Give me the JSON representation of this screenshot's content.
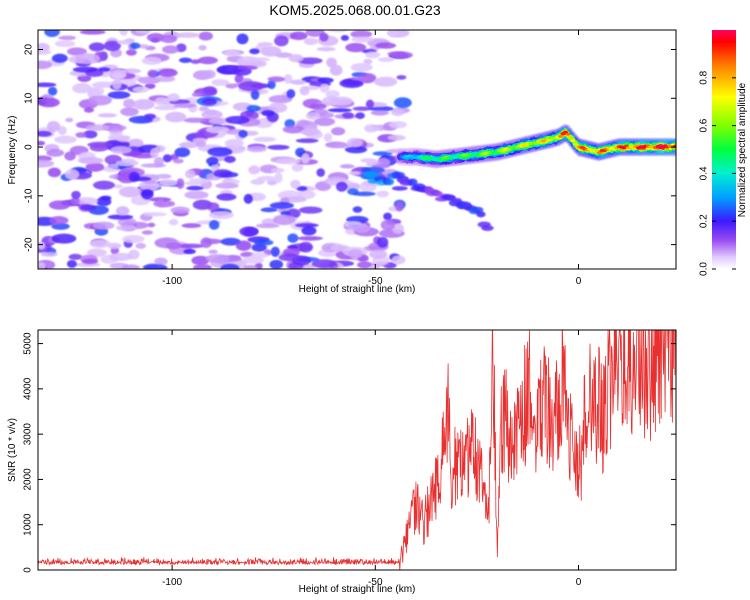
{
  "title": "KOM5.2025.068.00.01.G23",
  "chart_data": [
    {
      "type": "heatmap",
      "xlabel": "Height of straight line (km)",
      "ylabel": "Frequency (Hz)",
      "xlim": [
        -133,
        24
      ],
      "ylim": [
        -25,
        24
      ],
      "xticks": [
        -100,
        -50,
        0
      ],
      "yticks": [
        -20,
        -10,
        0,
        10,
        20
      ],
      "colorbar": {
        "label": "Normalized spectral amplitude",
        "range": [
          0,
          1
        ],
        "ticks": [
          0.0,
          0.2,
          0.4,
          0.6,
          0.8
        ],
        "tick_labels": [
          "0.0",
          "0.2",
          "0.4",
          "0.6",
          "0.8"
        ]
      },
      "noise_region": {
        "x": [
          -133,
          -43
        ],
        "amplitude": [
          0.05,
          0.25
        ]
      },
      "signal_trace": {
        "x": [
          -44,
          -40,
          -35,
          -30,
          -25,
          -20,
          -15,
          -10,
          -5,
          -3,
          0,
          5,
          10,
          15,
          20,
          24
        ],
        "y": [
          -2,
          -2,
          -2.5,
          -2,
          -1.5,
          -1,
          0,
          1,
          2,
          3,
          0,
          -1,
          0,
          0,
          0,
          0
        ],
        "amplitude": [
          0.25,
          0.4,
          0.5,
          0.5,
          0.55,
          0.6,
          0.65,
          0.7,
          0.75,
          0.85,
          0.8,
          0.8,
          0.85,
          0.9,
          0.95,
          1.0
        ]
      },
      "secondary_trace": {
        "x": [
          -52,
          -48,
          -44,
          -40,
          -35,
          -30,
          -25,
          -22
        ],
        "y": [
          -6,
          -7,
          -6,
          -8,
          -10,
          -11,
          -13,
          -17
        ],
        "amplitude": [
          0.3,
          0.3,
          0.25,
          0.2,
          0.15,
          0.2,
          0.25,
          0.15
        ]
      }
    },
    {
      "type": "line",
      "xlabel": "Height of straight line (km)",
      "ylabel": "SNR (10 * v/v)",
      "xlim": [
        -133,
        24
      ],
      "ylim": [
        0,
        5300
      ],
      "xticks": [
        -100,
        -50,
        0
      ],
      "yticks": [
        0,
        1000,
        2000,
        3000,
        4000,
        5000
      ],
      "color": "#e83030",
      "series": [
        {
          "x": [
            -133,
            -110,
            -90,
            -70,
            -50,
            -44,
            -42,
            -40,
            -38,
            -36,
            -34,
            -32,
            -31,
            -30,
            -28,
            -26,
            -24,
            -22,
            -21,
            -20,
            -19,
            -18,
            -16,
            -14,
            -12,
            -10,
            -8,
            -6,
            -4,
            -2,
            0,
            2,
            4,
            6,
            8,
            10,
            12,
            14,
            16,
            18,
            20,
            22,
            24
          ],
          "y": [
            150,
            150,
            150,
            150,
            160,
            160,
            800,
            1400,
            1000,
            1700,
            2100,
            3400,
            1800,
            2600,
            2200,
            2900,
            2000,
            1500,
            5100,
            200,
            3000,
            3300,
            2600,
            3500,
            3900,
            3400,
            3800,
            3100,
            4100,
            2800,
            2000,
            3600,
            3900,
            3300,
            4400,
            4100,
            4500,
            3700,
            4700,
            4600,
            4900,
            5000,
            5200
          ]
        }
      ]
    }
  ]
}
